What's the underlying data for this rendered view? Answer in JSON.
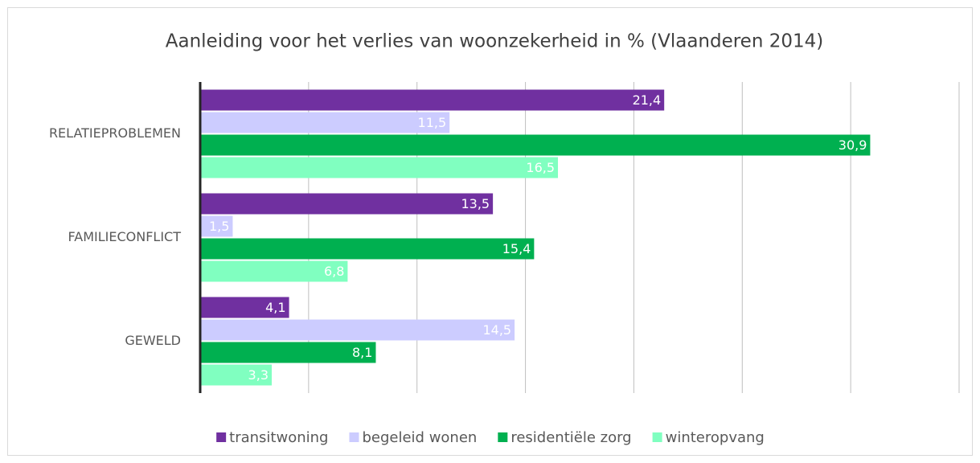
{
  "chart_data": {
    "type": "hbar",
    "title": "Aanleiding voor het verlies van woonzekerheid in % (Vlaanderen 2014)",
    "categories": [
      "RELATIEPROBLEMEN",
      "FAMILIECONFLICT",
      "GEWELD"
    ],
    "series": [
      {
        "name": "transitwoning",
        "color": "#7030a0",
        "values": [
          21.4,
          13.5,
          4.1
        ],
        "value_labels": [
          "21,4",
          "13,5",
          "4,1"
        ]
      },
      {
        "name": "begeleid wonen",
        "color": "#ccccff",
        "values": [
          11.5,
          1.5,
          14.5
        ],
        "value_labels": [
          "11,5",
          "1,5",
          "14,5"
        ]
      },
      {
        "name": "residentiële zorg",
        "color": "#00b050",
        "values": [
          30.9,
          15.4,
          8.1
        ],
        "value_labels": [
          "30,9",
          "15,4",
          "8,1"
        ]
      },
      {
        "name": "winteropvang",
        "color": "#80ffc0",
        "values": [
          16.5,
          6.8,
          3.3
        ],
        "value_labels": [
          "16,5",
          "6,8",
          "3,3"
        ]
      }
    ],
    "xlim": [
      0,
      35
    ],
    "xticks": [
      0,
      5,
      10,
      15,
      20,
      25,
      30,
      35
    ],
    "grid": true,
    "legend": "bottom"
  }
}
